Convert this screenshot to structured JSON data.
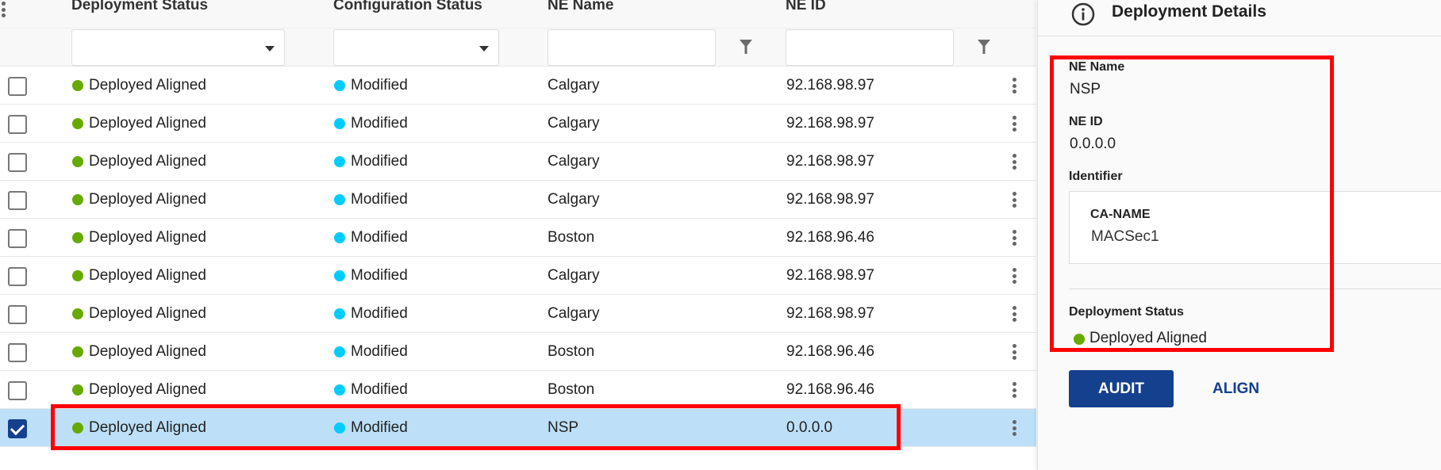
{
  "table": {
    "columns": [
      "Deployment Status",
      "Configuration Status",
      "NE Name",
      "NE ID"
    ],
    "rows": [
      {
        "deployment_status": "Deployed Aligned",
        "configuration_status": "Modified",
        "ne_name": "Calgary",
        "ne_id": "92.168.98.97",
        "selected": false
      },
      {
        "deployment_status": "Deployed Aligned",
        "configuration_status": "Modified",
        "ne_name": "Calgary",
        "ne_id": "92.168.98.97",
        "selected": false
      },
      {
        "deployment_status": "Deployed Aligned",
        "configuration_status": "Modified",
        "ne_name": "Calgary",
        "ne_id": "92.168.98.97",
        "selected": false
      },
      {
        "deployment_status": "Deployed Aligned",
        "configuration_status": "Modified",
        "ne_name": "Calgary",
        "ne_id": "92.168.98.97",
        "selected": false
      },
      {
        "deployment_status": "Deployed Aligned",
        "configuration_status": "Modified",
        "ne_name": "Boston",
        "ne_id": "92.168.96.46",
        "selected": false
      },
      {
        "deployment_status": "Deployed Aligned",
        "configuration_status": "Modified",
        "ne_name": "Calgary",
        "ne_id": "92.168.98.97",
        "selected": false
      },
      {
        "deployment_status": "Deployed Aligned",
        "configuration_status": "Modified",
        "ne_name": "Calgary",
        "ne_id": "92.168.98.97",
        "selected": false
      },
      {
        "deployment_status": "Deployed Aligned",
        "configuration_status": "Modified",
        "ne_name": "Boston",
        "ne_id": "92.168.96.46",
        "selected": false
      },
      {
        "deployment_status": "Deployed Aligned",
        "configuration_status": "Modified",
        "ne_name": "Boston",
        "ne_id": "92.168.96.46",
        "selected": false
      },
      {
        "deployment_status": "Deployed Aligned",
        "configuration_status": "Modified",
        "ne_name": "NSP",
        "ne_id": "0.0.0.0",
        "selected": true
      }
    ]
  },
  "panel": {
    "title": "Deployment Details",
    "ne_name_label": "NE Name",
    "ne_name": "NSP",
    "ne_id_label": "NE ID",
    "ne_id": "0.0.0.0",
    "identifier_label": "Identifier",
    "identifier_key": "CA-NAME",
    "identifier_value": "MACSec1",
    "deployment_status_label": "Deployment Status",
    "deployment_status": "Deployed Aligned",
    "audit_label": "AUDIT",
    "align_label": "ALIGN"
  },
  "colors": {
    "deployed_aligned": "#66aa00",
    "modified": "#00ccff",
    "primary": "#15408e",
    "selected_row": "#bde0f8",
    "highlight": "#ff0000"
  }
}
